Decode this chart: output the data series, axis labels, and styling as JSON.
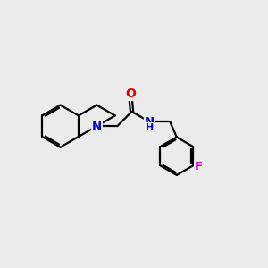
{
  "background_color": "#ebebeb",
  "bond_color": "#000000",
  "line_width": 1.6,
  "atom_colors": {
    "N": "#0000cc",
    "O": "#dd0000",
    "F": "#cc00cc",
    "C": "#000000"
  },
  "font_size_atom": 8.5,
  "fig_size": [
    3.0,
    3.0
  ],
  "dpi": 100,
  "xlim": [
    0,
    10
  ],
  "ylim": [
    0,
    10
  ]
}
